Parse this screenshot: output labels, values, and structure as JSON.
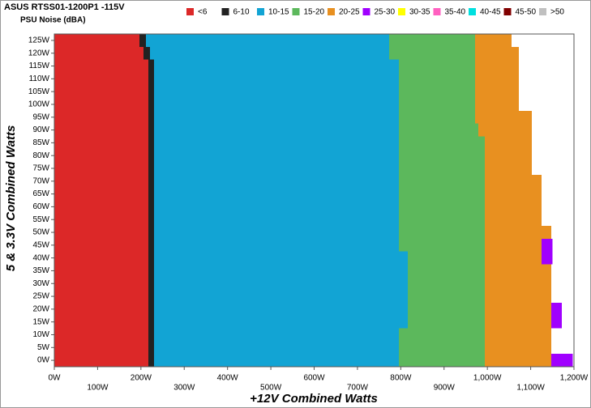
{
  "chart_data": {
    "type": "bar",
    "orientation": "horizontal",
    "stacked": true,
    "title": "ASUS RTSS01-1200P1 -115V",
    "subtitle": "PSU Noise (dBA)",
    "x_label": "+12V Combined Watts",
    "y_label": "5 & 3.3V Combined Watts",
    "categories": [
      0,
      5,
      10,
      15,
      20,
      25,
      30,
      35,
      40,
      45,
      50,
      55,
      60,
      65,
      70,
      75,
      80,
      85,
      90,
      95,
      100,
      105,
      110,
      115,
      120,
      125
    ],
    "series": [
      {
        "name": "<6",
        "color": "#dc2828",
        "values": [
          217,
          217,
          217,
          217,
          217,
          217,
          217,
          217,
          217,
          217,
          217,
          217,
          217,
          217,
          217,
          217,
          217,
          217,
          217,
          217,
          217,
          217,
          217,
          217,
          206,
          197
        ]
      },
      {
        "name": "6-10",
        "color": "#222222",
        "values": [
          13,
          13,
          13,
          13,
          13,
          13,
          13,
          13,
          13,
          13,
          13,
          13,
          13,
          13,
          13,
          13,
          13,
          13,
          13,
          13,
          13,
          13,
          13,
          13,
          15,
          15
        ]
      },
      {
        "name": "10-15",
        "color": "#12a4d4",
        "values": [
          566,
          566,
          566,
          586,
          586,
          586,
          586,
          586,
          586,
          566,
          566,
          566,
          566,
          566,
          566,
          566,
          566,
          566,
          566,
          566,
          566,
          566,
          566,
          566,
          552,
          561
        ]
      },
      {
        "name": "15-20",
        "color": "#5cb85c",
        "values": [
          198,
          198,
          198,
          178,
          178,
          178,
          178,
          178,
          178,
          198,
          198,
          198,
          198,
          198,
          198,
          198,
          198,
          198,
          183,
          176,
          176,
          176,
          176,
          176,
          199,
          199
        ]
      },
      {
        "name": "20-25",
        "color": "#e89020",
        "values": [
          154,
          154,
          154,
          154,
          154,
          154,
          154,
          154,
          131,
          131,
          154,
          131,
          131,
          131,
          131,
          109,
          109,
          109,
          124,
          131,
          101,
          101,
          101,
          101,
          101,
          84
        ]
      },
      {
        "name": "25-30",
        "color": "#a000ff",
        "values": [
          49,
          0,
          0,
          24,
          24,
          0,
          0,
          0,
          25,
          25,
          0,
          0,
          0,
          0,
          0,
          0,
          0,
          0,
          0,
          0,
          0,
          0,
          0,
          0,
          0,
          0
        ]
      },
      {
        "name": "30-35",
        "color": "#ffff00",
        "values": [
          0,
          0,
          0,
          0,
          0,
          0,
          0,
          0,
          0,
          0,
          0,
          0,
          0,
          0,
          0,
          0,
          0,
          0,
          0,
          0,
          0,
          0,
          0,
          0,
          0,
          0
        ]
      },
      {
        "name": "35-40",
        "color": "#ff60c0",
        "values": [
          0,
          0,
          0,
          0,
          0,
          0,
          0,
          0,
          0,
          0,
          0,
          0,
          0,
          0,
          0,
          0,
          0,
          0,
          0,
          0,
          0,
          0,
          0,
          0,
          0,
          0
        ]
      },
      {
        "name": "40-45",
        "color": "#00e0e0",
        "values": [
          0,
          0,
          0,
          0,
          0,
          0,
          0,
          0,
          0,
          0,
          0,
          0,
          0,
          0,
          0,
          0,
          0,
          0,
          0,
          0,
          0,
          0,
          0,
          0,
          0,
          0
        ]
      },
      {
        "name": "45-50",
        "color": "#800000",
        "values": [
          0,
          0,
          0,
          0,
          0,
          0,
          0,
          0,
          0,
          0,
          0,
          0,
          0,
          0,
          0,
          0,
          0,
          0,
          0,
          0,
          0,
          0,
          0,
          0,
          0,
          0
        ]
      },
      {
        "name": ">50",
        "color": "#c0c0c0",
        "values": [
          0,
          0,
          0,
          0,
          0,
          0,
          0,
          0,
          0,
          0,
          0,
          0,
          0,
          0,
          0,
          0,
          0,
          0,
          0,
          0,
          0,
          0,
          0,
          0,
          0,
          0
        ]
      }
    ],
    "xlim": [
      0,
      1200
    ],
    "xticks": [
      {
        "value": 0,
        "label": "0W"
      },
      {
        "value": 100,
        "label": "100W"
      },
      {
        "value": 200,
        "label": "200W"
      },
      {
        "value": 300,
        "label": "300W"
      },
      {
        "value": 400,
        "label": "400W"
      },
      {
        "value": 500,
        "label": "500W"
      },
      {
        "value": 600,
        "label": "600W"
      },
      {
        "value": 700,
        "label": "700W"
      },
      {
        "value": 800,
        "label": "800W"
      },
      {
        "value": 900,
        "label": "900W"
      },
      {
        "value": 1000,
        "label": "1,000W"
      },
      {
        "value": 1100,
        "label": "1,100W"
      },
      {
        "value": 1200,
        "label": "1,200W"
      }
    ],
    "ylim": [
      -2.5,
      127.5
    ],
    "yticks": [
      {
        "value": 0,
        "label": "0W"
      },
      {
        "value": 5,
        "label": "5W"
      },
      {
        "value": 10,
        "label": "10W"
      },
      {
        "value": 15,
        "label": "15W"
      },
      {
        "value": 20,
        "label": "20W"
      },
      {
        "value": 25,
        "label": "25W"
      },
      {
        "value": 30,
        "label": "30W"
      },
      {
        "value": 35,
        "label": "35W"
      },
      {
        "value": 40,
        "label": "40W"
      },
      {
        "value": 45,
        "label": "45W"
      },
      {
        "value": 50,
        "label": "50W"
      },
      {
        "value": 55,
        "label": "55W"
      },
      {
        "value": 60,
        "label": "60W"
      },
      {
        "value": 65,
        "label": "65W"
      },
      {
        "value": 70,
        "label": "70W"
      },
      {
        "value": 75,
        "label": "75W"
      },
      {
        "value": 80,
        "label": "80W"
      },
      {
        "value": 85,
        "label": "85W"
      },
      {
        "value": 90,
        "label": "90W"
      },
      {
        "value": 95,
        "label": "95W"
      },
      {
        "value": 100,
        "label": "100W"
      },
      {
        "value": 105,
        "label": "105W"
      },
      {
        "value": 110,
        "label": "110W"
      },
      {
        "value": 115,
        "label": "115W"
      },
      {
        "value": 120,
        "label": "120W"
      },
      {
        "value": 125,
        "label": "125W"
      }
    ],
    "row_height": 5,
    "grid": false,
    "legend": "top"
  }
}
